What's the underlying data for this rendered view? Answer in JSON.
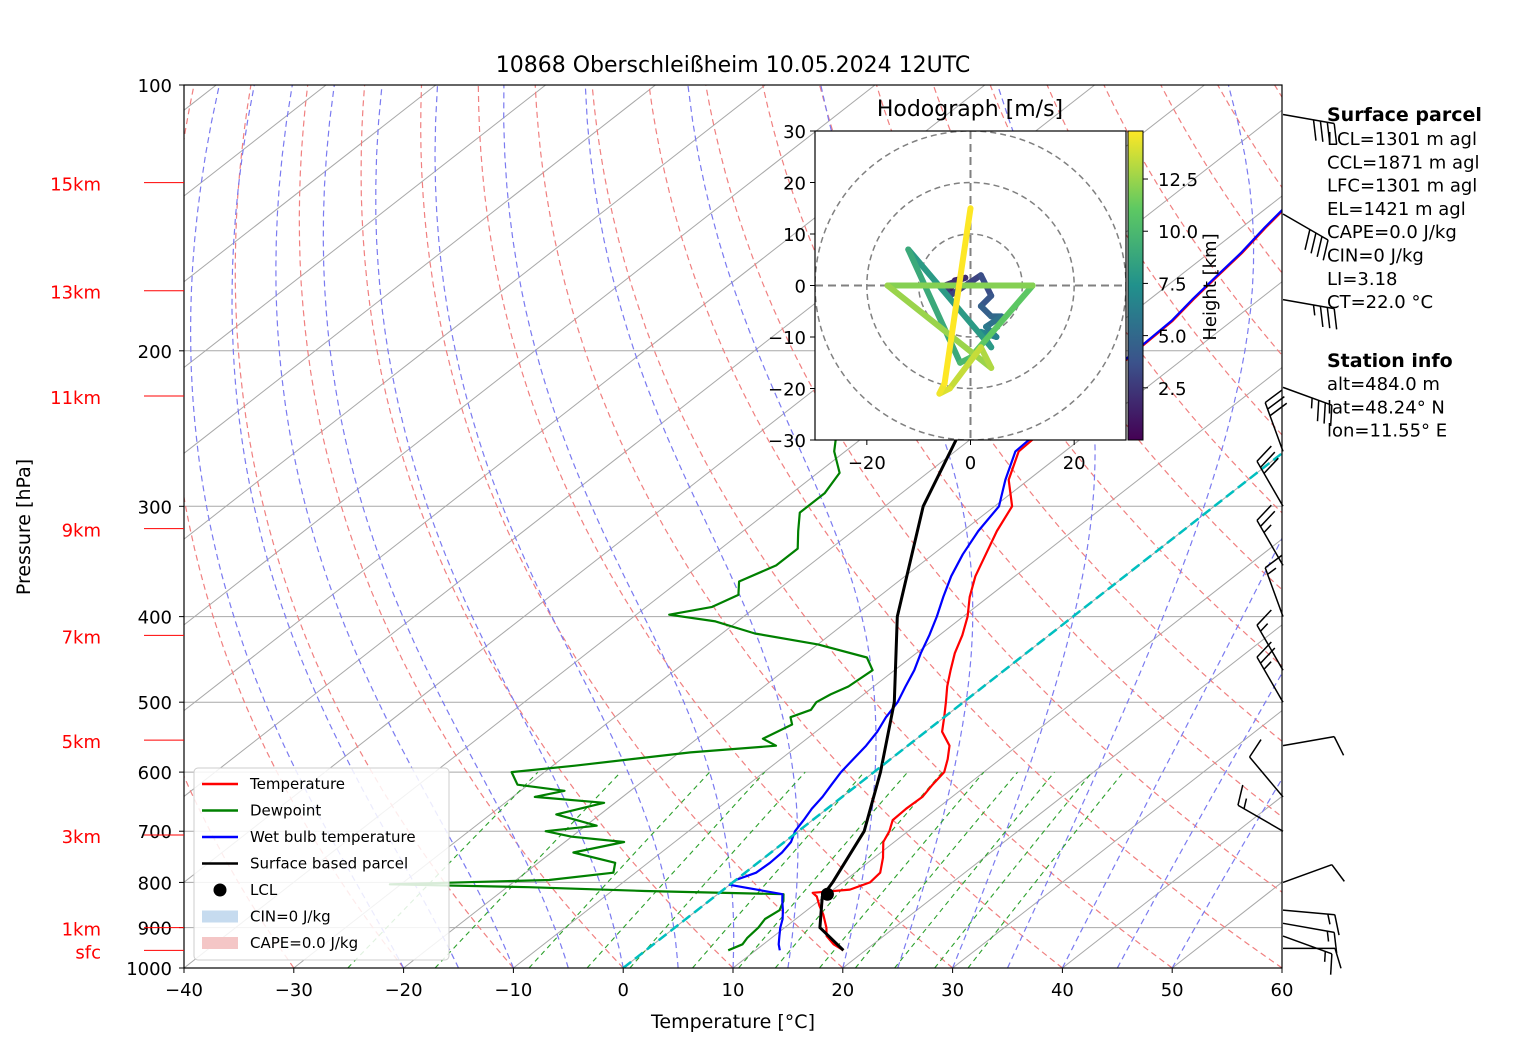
{
  "chart_data": [
    {
      "type": "line",
      "subtype": "skew-T log-p diagram",
      "title": "10868 Oberschleißheim 10.05.2024 12UTC",
      "xlabel": "Temperature [°C]",
      "ylabel": "Pressure [hPa]",
      "xlim": [
        -40,
        60
      ],
      "ylim": [
        1000,
        100
      ],
      "y_scale": "log",
      "x_ticks": [
        "−40",
        "−30",
        "−20",
        "−10",
        "0",
        "10",
        "20",
        "30",
        "40",
        "50",
        "60"
      ],
      "y_ticks": [
        "100",
        "200",
        "300",
        "400",
        "500",
        "600",
        "700",
        "800",
        "900",
        "1000"
      ],
      "grid": true,
      "height_labels": [
        {
          "label": "15km",
          "pressure": 129
        },
        {
          "label": "13km",
          "pressure": 171
        },
        {
          "label": "11km",
          "pressure": 225
        },
        {
          "label": "9km",
          "pressure": 318
        },
        {
          "label": "7km",
          "pressure": 420
        },
        {
          "label": "5km",
          "pressure": 552
        },
        {
          "label": "3km",
          "pressure": 707
        },
        {
          "label": "1km",
          "pressure": 900
        },
        {
          "label": "sfc",
          "pressure": 955
        }
      ],
      "series": [
        {
          "name": "Temperature",
          "color": "#ff0000",
          "points": [
            [
              955,
              18
            ],
            [
              940,
              16.4
            ],
            [
              920,
              14.8
            ],
            [
              900,
              13.8
            ],
            [
              870,
              12
            ],
            [
              850,
              10.6
            ],
            [
              830,
              9.3
            ],
            [
              822,
              8.5
            ],
            [
              815,
              11.5
            ],
            [
              800,
              12.5
            ],
            [
              780,
              12.3
            ],
            [
              750,
              10.8
            ],
            [
              720,
              9
            ],
            [
              700,
              8.3
            ],
            [
              680,
              7.3
            ],
            [
              660,
              7.2
            ],
            [
              640,
              7.3
            ],
            [
              620,
              6.8
            ],
            [
              600,
              6.4
            ],
            [
              580,
              5.2
            ],
            [
              560,
              3.8
            ],
            [
              540,
              1.5
            ],
            [
              520,
              0
            ],
            [
              500,
              -1.6
            ],
            [
              480,
              -3.3
            ],
            [
              460,
              -4.9
            ],
            [
              440,
              -6.5
            ],
            [
              420,
              -7.9
            ],
            [
              400,
              -9.6
            ],
            [
              380,
              -11.7
            ],
            [
              360,
              -13.6
            ],
            [
              340,
              -15.2
            ],
            [
              320,
              -16.9
            ],
            [
              300,
              -18.4
            ],
            [
              280,
              -21.8
            ],
            [
              260,
              -24.2
            ],
            [
              240,
              -24.5
            ],
            [
              220,
              -24.7
            ],
            [
              200,
              -25.2
            ],
            [
              185,
              -25.4
            ],
            [
              175,
              -26
            ],
            [
              165,
              -26.5
            ],
            [
              155,
              -27
            ],
            [
              145,
              -27.8
            ],
            [
              135,
              -28.5
            ],
            [
              127,
              -30
            ],
            [
              118,
              -31
            ]
          ]
        },
        {
          "name": "Dewpoint",
          "color": "#008000",
          "points": [
            [
              955,
              7.5
            ],
            [
              940,
              8.1
            ],
            [
              925,
              7.8
            ],
            [
              900,
              7.6
            ],
            [
              880,
              7.2
            ],
            [
              860,
              7.5
            ],
            [
              840,
              6.8
            ],
            [
              825,
              6
            ],
            [
              818,
              -7
            ],
            [
              810,
              -18
            ],
            [
              804,
              -31
            ],
            [
              795,
              -17
            ],
            [
              780,
              -12
            ],
            [
              760,
              -13
            ],
            [
              740,
              -18
            ],
            [
              720,
              -14.6
            ],
            [
              710,
              -20
            ],
            [
              700,
              -23
            ],
            [
              690,
              -19
            ],
            [
              670,
              -24
            ],
            [
              650,
              -21
            ],
            [
              640,
              -28
            ],
            [
              630,
              -26
            ],
            [
              620,
              -31
            ],
            [
              600,
              -33
            ],
            [
              590,
              -28
            ],
            [
              570,
              -19
            ],
            [
              560,
              -12
            ],
            [
              550,
              -14
            ],
            [
              530,
              -13
            ],
            [
              520,
              -14
            ],
            [
              510,
              -13
            ],
            [
              500,
              -13.4
            ],
            [
              490,
              -13
            ],
            [
              480,
              -12.3
            ],
            [
              460,
              -12
            ],
            [
              445,
              -14
            ],
            [
              430,
              -20
            ],
            [
              418,
              -27
            ],
            [
              405,
              -32
            ],
            [
              398,
              -37
            ],
            [
              390,
              -34
            ],
            [
              378,
              -33
            ],
            [
              365,
              -34.5
            ],
            [
              350,
              -33
            ],
            [
              335,
              -33
            ],
            [
              320,
              -35
            ],
            [
              305,
              -37
            ],
            [
              290,
              -37
            ],
            [
              275,
              -38
            ],
            [
              260,
              -41
            ],
            [
              245,
              -43.4
            ],
            [
              235,
              -43
            ],
            [
              220,
              -46
            ],
            [
              205,
              -47.5
            ],
            [
              190,
              -48.5
            ],
            [
              175,
              -50
            ],
            [
              160,
              -53
            ],
            [
              148,
              -55
            ],
            [
              138,
              -56.5
            ],
            [
              128,
              -58
            ],
            [
              119,
              -59
            ],
            [
              115,
              -58.5
            ]
          ]
        },
        {
          "name": "Wet bulb temperature",
          "color": "#0000ff",
          "points": [
            [
              955,
              12.2
            ],
            [
              940,
              11.4
            ],
            [
              920,
              10.5
            ],
            [
              900,
              9.6
            ],
            [
              880,
              8.8
            ],
            [
              860,
              7.8
            ],
            [
              840,
              6.7
            ],
            [
              825,
              5.9
            ],
            [
              815,
              3
            ],
            [
              805,
              0
            ],
            [
              795,
              0
            ],
            [
              780,
              1
            ],
            [
              760,
              1.1
            ],
            [
              740,
              1
            ],
            [
              720,
              0.6
            ],
            [
              700,
              -0.3
            ],
            [
              680,
              -0.8
            ],
            [
              660,
              -1.4
            ],
            [
              640,
              -1.8
            ],
            [
              620,
              -2.4
            ],
            [
              600,
              -3
            ],
            [
              580,
              -3.4
            ],
            [
              560,
              -3.8
            ],
            [
              540,
              -4.4
            ],
            [
              520,
              -5.3
            ],
            [
              500,
              -6
            ],
            [
              480,
              -7.1
            ],
            [
              460,
              -8.2
            ],
            [
              440,
              -9.6
            ],
            [
              420,
              -10.9
            ],
            [
              400,
              -12.4
            ],
            [
              380,
              -14.1
            ],
            [
              360,
              -15.8
            ],
            [
              340,
              -17.3
            ],
            [
              320,
              -18.6
            ],
            [
              300,
              -19.6
            ],
            [
              280,
              -22.1
            ],
            [
              260,
              -24.5
            ],
            [
              240,
              -24.8
            ],
            [
              220,
              -24.9
            ],
            [
              200,
              -25.3
            ],
            [
              185,
              -25.5
            ],
            [
              175,
              -26.1
            ],
            [
              165,
              -26.6
            ],
            [
              155,
              -27.1
            ],
            [
              145,
              -27.9
            ],
            [
              135,
              -28.6
            ],
            [
              127,
              -30
            ],
            [
              118,
              -31
            ]
          ]
        },
        {
          "name": "Surface based parcel",
          "color": "#000000",
          "points": [
            [
              955,
              18
            ],
            [
              900,
              13.2
            ],
            [
              830,
              9.8
            ],
            [
              800,
              9.1
            ],
            [
              700,
              6
            ],
            [
              600,
              0.6
            ],
            [
              500,
              -6.3
            ],
            [
              400,
              -16
            ],
            [
              300,
              -26.5
            ],
            [
              250,
              -31.5
            ],
            [
              200,
              -37.2
            ],
            [
              160,
              -43
            ],
            [
              128,
              -48.5
            ]
          ]
        },
        {
          "name": "0 °C isotherm",
          "color": "#00bfbf",
          "points": [
            [
              1000,
              0
            ],
            [
              100,
              0
            ]
          ]
        }
      ],
      "lcl": {
        "pressure": 825,
        "temperature": 10,
        "label": "LCL"
      },
      "legend": {
        "position": "lower-left",
        "entries": [
          "Temperature",
          "Dewpoint",
          "Wet bulb temperature",
          "Surface based parcel",
          "LCL",
          "CIN=0 J/kg",
          "CAPE=0.0 J/kg"
        ]
      },
      "background_lines": {
        "dry_adiabats": "red dashed",
        "moist_adiabats": "blue dashed",
        "mixing_ratio": "green dashed",
        "isotherms": "gray"
      }
    },
    {
      "type": "line",
      "subtype": "hodograph",
      "title": "Hodograph [m/s]",
      "xlim": [
        -30,
        30
      ],
      "ylim": [
        -30,
        30
      ],
      "x_ticks": [
        "−20",
        "0",
        "20"
      ],
      "y_ticks": [
        "30",
        "20",
        "10",
        "0",
        "−10",
        "−20",
        "−30"
      ],
      "rings": [
        10,
        20,
        30
      ],
      "colorbar": {
        "label": "Height [km]",
        "ticks": [
          "2.5",
          "5.0",
          "7.5",
          "10.0",
          "12.5"
        ],
        "range": [
          0,
          14.8
        ],
        "colormap": "viridis"
      },
      "segments": [
        {
          "h": 0.5,
          "u": -4,
          "v": -1
        },
        {
          "h": 1,
          "u": -3,
          "v": 1
        },
        {
          "h": 1.5,
          "u": -1,
          "v": 1.5
        },
        {
          "h": 2,
          "u": -5,
          "v": 0
        },
        {
          "h": 2.5,
          "u": -4,
          "v": -2
        },
        {
          "h": 3,
          "u": 2,
          "v": 2
        },
        {
          "h": 3.5,
          "u": 4,
          "v": -2
        },
        {
          "h": 4,
          "u": 2,
          "v": -4
        },
        {
          "h": 4.5,
          "u": 4,
          "v": -6
        },
        {
          "h": 5,
          "u": 6,
          "v": -6
        },
        {
          "h": 5.5,
          "u": 3,
          "v": -8
        },
        {
          "h": 6,
          "u": 5,
          "v": -10
        },
        {
          "h": 6.5,
          "u": 2,
          "v": -9
        },
        {
          "h": 7,
          "u": 4,
          "v": -12
        },
        {
          "h": 8,
          "u": -12,
          "v": 7
        },
        {
          "h": 9,
          "u": -2,
          "v": -15
        },
        {
          "h": 10,
          "u": 0,
          "v": -14
        },
        {
          "h": 11,
          "u": 12,
          "v": 0
        },
        {
          "h": 12,
          "u": -16,
          "v": 0
        },
        {
          "h": 12.5,
          "u": 4,
          "v": -16
        },
        {
          "h": 13,
          "u": 2,
          "v": -12
        },
        {
          "h": 13.5,
          "u": -4,
          "v": -20
        },
        {
          "h": 14,
          "u": -6,
          "v": -21
        },
        {
          "h": 14.5,
          "u": -5,
          "v": -19
        },
        {
          "h": 14.8,
          "u": 0,
          "v": 15
        }
      ]
    }
  ],
  "wind_barbs": [
    {
      "pressure": 950,
      "speed_kt": 10,
      "dir_deg": 90
    },
    {
      "pressure": 920,
      "speed_kt": 15,
      "dir_deg": 110
    },
    {
      "pressure": 890,
      "speed_kt": 15,
      "dir_deg": 100
    },
    {
      "pressure": 860,
      "speed_kt": 15,
      "dir_deg": 95
    },
    {
      "pressure": 800,
      "speed_kt": 10,
      "dir_deg": 70
    },
    {
      "pressure": 700,
      "speed_kt": 15,
      "dir_deg": 300
    },
    {
      "pressure": 640,
      "speed_kt": 10,
      "dir_deg": 320
    },
    {
      "pressure": 560,
      "speed_kt": 10,
      "dir_deg": 80
    },
    {
      "pressure": 500,
      "speed_kt": 25,
      "dir_deg": 330
    },
    {
      "pressure": 460,
      "speed_kt": 15,
      "dir_deg": 330
    },
    {
      "pressure": 400,
      "speed_kt": 15,
      "dir_deg": 340
    },
    {
      "pressure": 350,
      "speed_kt": 25,
      "dir_deg": 330
    },
    {
      "pressure": 300,
      "speed_kt": 30,
      "dir_deg": 330
    },
    {
      "pressure": 260,
      "speed_kt": 30,
      "dir_deg": 340
    },
    {
      "pressure": 220,
      "speed_kt": 35,
      "dir_deg": 110
    },
    {
      "pressure": 175,
      "speed_kt": 35,
      "dir_deg": 100
    },
    {
      "pressure": 140,
      "speed_kt": 40,
      "dir_deg": 120
    },
    {
      "pressure": 108,
      "speed_kt": 40,
      "dir_deg": 100
    }
  ],
  "info_panel": {
    "surface_parcel_title": "Surface parcel",
    "surface_parcel_lines": [
      "LCL=1301 m agl",
      "CCL=1871 m agl",
      "LFC=1301 m agl",
      "EL=1421 m agl",
      "CAPE=0.0 J/kg",
      "CIN=0 J/kg",
      "LI=3.18",
      "CT=22.0 °C"
    ],
    "station_title": "Station info",
    "station_lines": [
      "alt=484.0 m",
      "lat=48.24° N",
      "lon=11.55° E"
    ]
  },
  "colors": {
    "temperature": "#ff0000",
    "dewpoint": "#008000",
    "wetbulb": "#0000ff",
    "parcel": "#000000",
    "freezing_level": "#00bfbf",
    "height_labels": "#ff0000",
    "cin_fill": "#c6dbef",
    "cape_fill": "#f4c6c6"
  }
}
